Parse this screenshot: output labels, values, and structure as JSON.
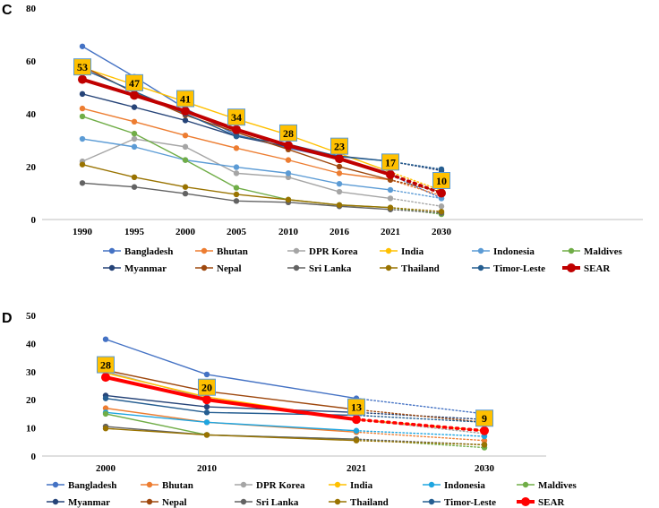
{
  "chart_data": [
    {
      "panel": "C",
      "type": "line",
      "x": [
        "1990",
        "1995",
        "2000",
        "2005",
        "2010",
        "2016",
        "2021",
        "2030"
      ],
      "ylim": [
        0,
        80
      ],
      "yticks": [
        0,
        20,
        40,
        60,
        80
      ],
      "projected_from_index": 6,
      "series": [
        {
          "name": "Bangladesh",
          "color": "#4472C4",
          "values": [
            65.5,
            54,
            42,
            32,
            27,
            23,
            17,
            8
          ]
        },
        {
          "name": "Bhutan",
          "color": "#ED7D31",
          "values": [
            42,
            37,
            31.8,
            27,
            22.5,
            17.5,
            15,
            9
          ]
        },
        {
          "name": "DPR Korea",
          "color": "#A5A5A5",
          "values": [
            22,
            30.5,
            27.5,
            17.5,
            16,
            10.5,
            8,
            5
          ]
        },
        {
          "name": "India",
          "color": "#FFC000",
          "values": [
            57.5,
            51,
            44.5,
            38,
            32,
            25,
            18,
            11
          ]
        },
        {
          "name": "Indonesia",
          "color": "#5B9BD5",
          "values": [
            30.5,
            27.5,
            22.5,
            19.8,
            17.5,
            13.5,
            11.2,
            8
          ]
        },
        {
          "name": "Maldives",
          "color": "#70AD47",
          "values": [
            39,
            32.5,
            22.5,
            12,
            7.5,
            5.5,
            4.5,
            2
          ]
        },
        {
          "name": "Myanmar",
          "color": "#264478",
          "values": [
            47.5,
            42.5,
            37.5,
            31.5,
            27.5,
            24,
            22,
            18.5
          ]
        },
        {
          "name": "Nepal",
          "color": "#9E480E",
          "values": [
            58,
            48,
            39.5,
            33,
            26.5,
            20,
            15,
            10.5
          ]
        },
        {
          "name": "Sri Lanka",
          "color": "#636363",
          "values": [
            13.8,
            12.3,
            9.8,
            7,
            6.5,
            5,
            3.8,
            2.5
          ]
        },
        {
          "name": "Thailand",
          "color": "#997300",
          "values": [
            20.8,
            16,
            12.3,
            9.5,
            7.5,
            5.5,
            4.5,
            3
          ]
        },
        {
          "name": "Timor-Leste",
          "color": "#255E91",
          "values": [
            57,
            48.5,
            40,
            31.5,
            28.5,
            23.8,
            22,
            19
          ]
        },
        {
          "name": "SEAR",
          "color": "#C00000",
          "values": [
            53,
            47,
            41,
            34,
            28,
            23,
            17,
            10
          ],
          "labels": [
            "53",
            "47",
            "41",
            "34",
            "28",
            "23",
            "17",
            "10"
          ]
        }
      ]
    },
    {
      "panel": "D",
      "type": "line",
      "x": [
        "2000",
        "2010",
        "2021",
        "2030"
      ],
      "ylim": [
        0,
        50
      ],
      "yticks": [
        0,
        10,
        20,
        30,
        40,
        50
      ],
      "projected_from_index": 2,
      "series": [
        {
          "name": "Bangladesh",
          "color": "#4472C4",
          "values": [
            41.5,
            29,
            20.5,
            15
          ]
        },
        {
          "name": "Bhutan",
          "color": "#ED7D31",
          "values": [
            17,
            12,
            8.5,
            5.5
          ]
        },
        {
          "name": "DPR Korea",
          "color": "#A5A5A5",
          "values": [
            30,
            20.5,
            13,
            8
          ]
        },
        {
          "name": "India",
          "color": "#FFC000",
          "values": [
            29.5,
            21,
            13,
            9
          ]
        },
        {
          "name": "Indonesia",
          "color": "#1EA5E0",
          "values": [
            15.5,
            12,
            9,
            7
          ]
        },
        {
          "name": "Maldives",
          "color": "#70AD47",
          "values": [
            15,
            7.5,
            6,
            3
          ]
        },
        {
          "name": "Myanmar",
          "color": "#264478",
          "values": [
            21.5,
            17.5,
            15.5,
            13
          ]
        },
        {
          "name": "Nepal",
          "color": "#9E480E",
          "values": [
            30.5,
            23,
            16.5,
            12
          ]
        },
        {
          "name": "Sri Lanka",
          "color": "#636363",
          "values": [
            10.5,
            7.5,
            6,
            4
          ]
        },
        {
          "name": "Thailand",
          "color": "#997300",
          "values": [
            9.8,
            7.5,
            5.5,
            4
          ]
        },
        {
          "name": "Timor-Leste",
          "color": "#255E91",
          "values": [
            20.5,
            15.5,
            14.5,
            12
          ]
        },
        {
          "name": "SEAR",
          "color": "#FF0000",
          "values": [
            28,
            20,
            13,
            9
          ],
          "labels": [
            "28",
            "20",
            "13",
            "9"
          ]
        }
      ]
    }
  ],
  "panels": {
    "C": "C",
    "D": "D"
  }
}
